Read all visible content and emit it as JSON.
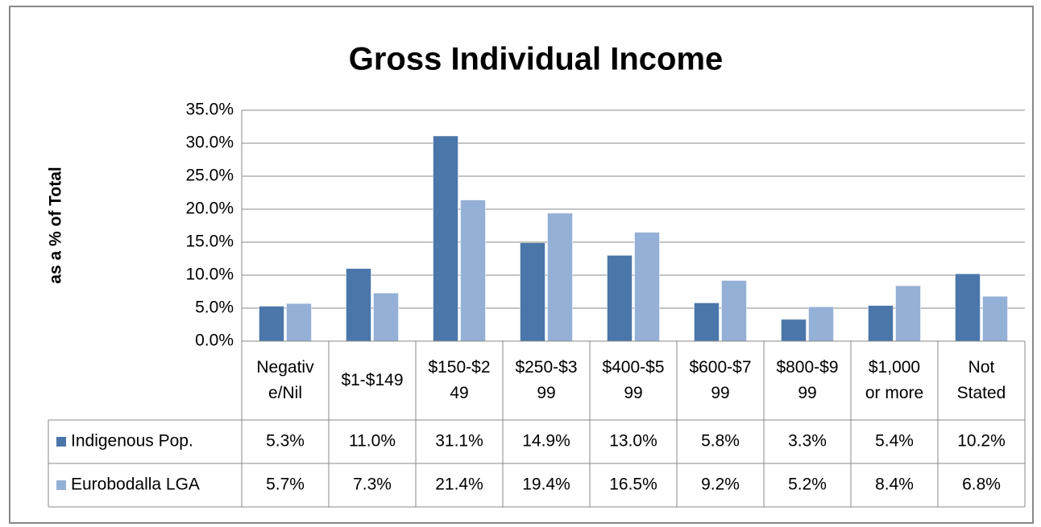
{
  "chart_data": {
    "type": "bar",
    "title": "Gross Individual Income",
    "y_label": "as a % of Total",
    "categories": [
      "Negative/Nil",
      "$1-$149",
      "$150-$249",
      "$250-$399",
      "$400-$599",
      "$600-$799",
      "$800-$999",
      "$1,000 or more",
      "Not Stated"
    ],
    "series": [
      {
        "name": "Indigenous Pop.",
        "color": "#4a76a9",
        "values": [
          5.3,
          11.0,
          31.1,
          14.9,
          13.0,
          5.8,
          3.3,
          5.4,
          10.2
        ],
        "value_labels": [
          "5.3%",
          "11.0%",
          "31.1%",
          "14.9%",
          "13.0%",
          "5.8%",
          "3.3%",
          "5.4%",
          "10.2%"
        ]
      },
      {
        "name": "Eurobodalla LGA",
        "color": "#95b0d6",
        "values": [
          5.7,
          7.3,
          21.4,
          19.4,
          16.5,
          9.2,
          5.2,
          8.4,
          6.8
        ],
        "value_labels": [
          "5.7%",
          "7.3%",
          "21.4%",
          "19.4%",
          "16.5%",
          "9.2%",
          "5.2%",
          "8.4%",
          "6.8%"
        ]
      }
    ],
    "ylim": [
      0,
      35
    ],
    "yticks": [
      {
        "value": 0,
        "label": "0.0%"
      },
      {
        "value": 5,
        "label": "5.0%"
      },
      {
        "value": 10,
        "label": "10.0%"
      },
      {
        "value": 15,
        "label": "15.0%"
      },
      {
        "value": 20,
        "label": "20.0%"
      },
      {
        "value": 25,
        "label": "25.0%"
      },
      {
        "value": 30,
        "label": "30.0%"
      },
      {
        "value": 35,
        "label": "35.0%"
      }
    ],
    "grid": true,
    "data_table": true
  }
}
